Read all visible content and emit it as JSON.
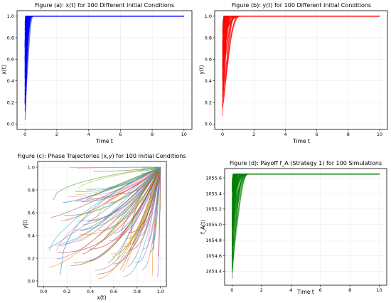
{
  "chart_data": [
    {
      "id": "a",
      "type": "line",
      "title": "Figure (a): x(t) for 100 Different Initial Conditions",
      "xlabel": "Time t",
      "ylabel": "x(t)",
      "xlim": [
        -0.5,
        10.5
      ],
      "ylim": [
        -0.05,
        1.05
      ],
      "xticks": [
        0,
        2,
        4,
        6,
        8,
        10
      ],
      "yticks": [
        0.0,
        0.2,
        0.4,
        0.6,
        0.8,
        1.0
      ],
      "ytick_labels": [
        "0.0",
        "0.2",
        "0.4",
        "0.6",
        "0.8",
        "1.0"
      ],
      "grid": true,
      "color": "#0000ff",
      "series_count": 100,
      "t_range": [
        0,
        10
      ],
      "start_range": [
        0.01,
        0.95
      ],
      "steady_value": 1.0,
      "time_to_saturate_range": [
        0.05,
        0.55
      ]
    },
    {
      "id": "b",
      "type": "line",
      "title": "Figure (b): y(t) for 100 Different Initial Conditions",
      "xlabel": "Time t",
      "ylabel": "y(t)",
      "xlim": [
        -0.5,
        10.5
      ],
      "ylim": [
        -0.05,
        1.05
      ],
      "xticks": [
        0,
        2,
        4,
        6,
        8,
        10
      ],
      "yticks": [
        0.0,
        0.2,
        0.4,
        0.6,
        0.8,
        1.0
      ],
      "ytick_labels": [
        "0.0",
        "0.2",
        "0.4",
        "0.6",
        "0.8",
        "1.0"
      ],
      "grid": true,
      "color": "#ff0000",
      "series_count": 100,
      "t_range": [
        0,
        10
      ],
      "start_range": [
        0.01,
        0.95
      ],
      "steady_value": 1.0,
      "time_to_saturate_range": [
        0.1,
        1.2
      ]
    },
    {
      "id": "c",
      "type": "line",
      "title": "Figure (c): Phase Trajectories (x,y) for 100 Initial Conditions",
      "xlabel": "x(t)",
      "ylabel": "y(t)",
      "xlim": [
        -0.05,
        1.05
      ],
      "ylim": [
        -0.05,
        1.05
      ],
      "xticks": [
        0.0,
        0.2,
        0.4,
        0.6,
        0.8,
        1.0
      ],
      "xtick_labels": [
        "0.0",
        "0.2",
        "0.4",
        "0.6",
        "0.8",
        "1.0"
      ],
      "yticks": [
        0.0,
        0.2,
        0.4,
        0.6,
        0.8,
        1.0
      ],
      "ytick_labels": [
        "0.0",
        "0.2",
        "0.4",
        "0.6",
        "0.8",
        "1.0"
      ],
      "grid": true,
      "series_count": 100,
      "endpoint": [
        1.0,
        1.0
      ],
      "palette": [
        "#1f77b4",
        "#ff7f0e",
        "#2ca02c",
        "#d62728",
        "#9467bd",
        "#8c564b",
        "#e377c2",
        "#7f7f7f",
        "#bcbd22",
        "#17becf"
      ]
    },
    {
      "id": "d",
      "type": "line",
      "title": "Figure (d): Payoff f_A (Strategy 1) for 100 Simulations",
      "xlabel": "Time t",
      "ylabel": "f_A(t)",
      "xlim": [
        -0.5,
        10.5
      ],
      "ylim": [
        1054.22,
        1055.72
      ],
      "xticks": [
        0,
        2,
        4,
        6,
        8,
        10
      ],
      "yticks": [
        1054.4,
        1054.6,
        1054.8,
        1055.0,
        1055.2,
        1055.4,
        1055.6
      ],
      "ytick_labels": [
        "1054.4",
        "1054.6",
        "1054.8",
        "1055.0",
        "1055.2",
        "1055.4",
        "1055.6"
      ],
      "grid": true,
      "color": "#008000",
      "series_count": 100,
      "t_range": [
        0,
        10
      ],
      "start_range": [
        1054.28,
        1055.6
      ],
      "steady_value": 1055.65,
      "time_to_saturate_range": [
        0.1,
        1.2
      ]
    }
  ]
}
